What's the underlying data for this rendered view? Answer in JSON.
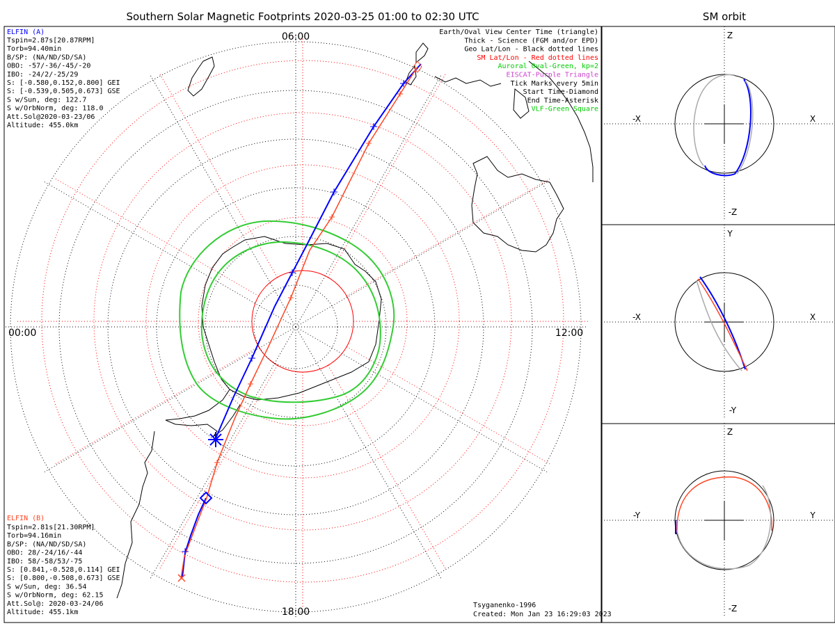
{
  "title": "Southern Solar Magnetic Footprints 2020-03-25 01:00 to 02:30 UTC",
  "orbit_title": "SM orbit",
  "clock": {
    "top": "06:00",
    "left": "00:00",
    "right": "12:00",
    "bottom": "18:00"
  },
  "elfin_a": {
    "name": "ELFIN (A)",
    "color": "#0000ff",
    "lines": [
      "Tspin=2.87s[20.87RPM]",
      "Torb=94.40min",
      "B/SP: (NA/ND/SD/SA)",
      "OBO: -57/-36/-45/-20",
      "IBO: -24/2/-25/29",
      "S: [-0.580,0.152,0.800] GEI",
      "S: [-0.539,0.505,0.673] GSE",
      "S w/Sun, deg: 122.7",
      "S w/OrbNorm, deg: 118.0",
      "Att.Sol@2020-03-23/06",
      "Altitude: 455.0km"
    ]
  },
  "elfin_b": {
    "name": "ELFIN (B)",
    "color": "#ff4422",
    "lines": [
      "Tspin=2.81s[21.30RPM]",
      "Torb=94.16min",
      "B/SP: (NA/ND/SD/SA)",
      "OBO: 28/-24/16/-44",
      "IBO: 58/-58/53/-75",
      "S: [0.841,-0.528,0.114] GEI",
      "S: [0.800,-0.508,0.673] GSE",
      "S w/Sun, deg: 36.54",
      "S w/OrbNorm, deg: 62.15",
      "Att.Sol@: 2020-03-24/06",
      "Altitude: 455.1km"
    ]
  },
  "legend": [
    {
      "text": "Earth/Oval View Center Time (triangle)",
      "color": "#000000"
    },
    {
      "text": "Thick - Science (FGM and/or EPD)",
      "color": "#000000"
    },
    {
      "text": "Geo Lat/Lon - Black dotted lines",
      "color": "#000000"
    },
    {
      "text": "SM Lat/Lon - Red dotted lines",
      "color": "#ff0000"
    },
    {
      "text": "Auroral Oval-Green, kp=2",
      "color": "#00cc00"
    },
    {
      "text": "EISCAT-Purple Triangle",
      "color": "#cc44cc"
    },
    {
      "text": "Tick Marks every 5min",
      "color": "#000000"
    },
    {
      "text": "Start Time-Diamond",
      "color": "#000000"
    },
    {
      "text": "End Time-Asterisk",
      "color": "#000000"
    },
    {
      "text": "VLF-Green Square",
      "color": "#00cc00"
    }
  ],
  "credits": {
    "model": "Tsyganenko-1996",
    "created": "Created: Mon Jan 23 16:29:03 2023"
  },
  "panels": [
    {
      "up": "Z",
      "down": "-Z",
      "left": "-X",
      "right": "X"
    },
    {
      "up": "Y",
      "down": "-Y",
      "left": "-X",
      "right": "X"
    },
    {
      "up": "Z",
      "down": "-Z",
      "left": "-Y",
      "right": "Y"
    }
  ],
  "colors": {
    "elfin_a": "#0000ff",
    "elfin_b": "#ff4422",
    "oval": "#33cc33",
    "sm_grid": "#ff0000",
    "geo_grid": "#000000"
  }
}
